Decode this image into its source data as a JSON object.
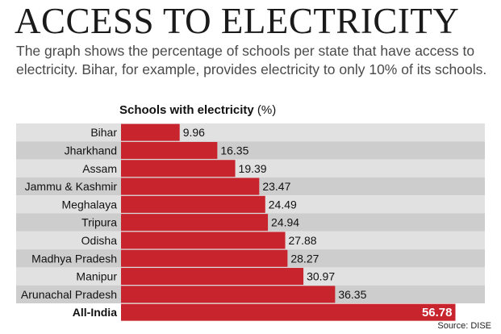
{
  "headline": "ACCESS TO ELECTRICITY",
  "intro": "The graph shows the percentage of schools per state that have access to electricity. Bihar, for example, provides electricity to only 10% of its schools.",
  "source": "Source: DISE",
  "colors": {
    "bar": "#c8242e",
    "bar_highlight": "#c8242e",
    "row_odd": "#e1e1e1",
    "row_even": "#cdcdcd",
    "text": "#111111",
    "highlight_label": "#ffffff"
  },
  "chart_data": {
    "type": "bar",
    "orientation": "horizontal",
    "title": "Schools with electricity",
    "title_unit": "(%)",
    "categories": [
      "Bihar",
      "Jharkhand",
      "Assam",
      "Jammu & Kashmir",
      "Meghalaya",
      "Tripura",
      "Odisha",
      "Madhya Pradesh",
      "Manipur",
      "Arunachal Pradesh",
      "All-India"
    ],
    "values": [
      9.96,
      16.35,
      19.39,
      23.47,
      24.49,
      24.94,
      27.88,
      28.27,
      30.97,
      36.35,
      56.78
    ],
    "value_labels": [
      "9.96",
      "16.35",
      "19.39",
      "23.47",
      "24.49",
      "24.94",
      "27.88",
      "28.27",
      "30.97",
      "36.35",
      "56.78"
    ],
    "highlight": "All-India",
    "xlim": [
      0,
      60
    ],
    "grid": false,
    "xlabel": "",
    "ylabel": ""
  }
}
